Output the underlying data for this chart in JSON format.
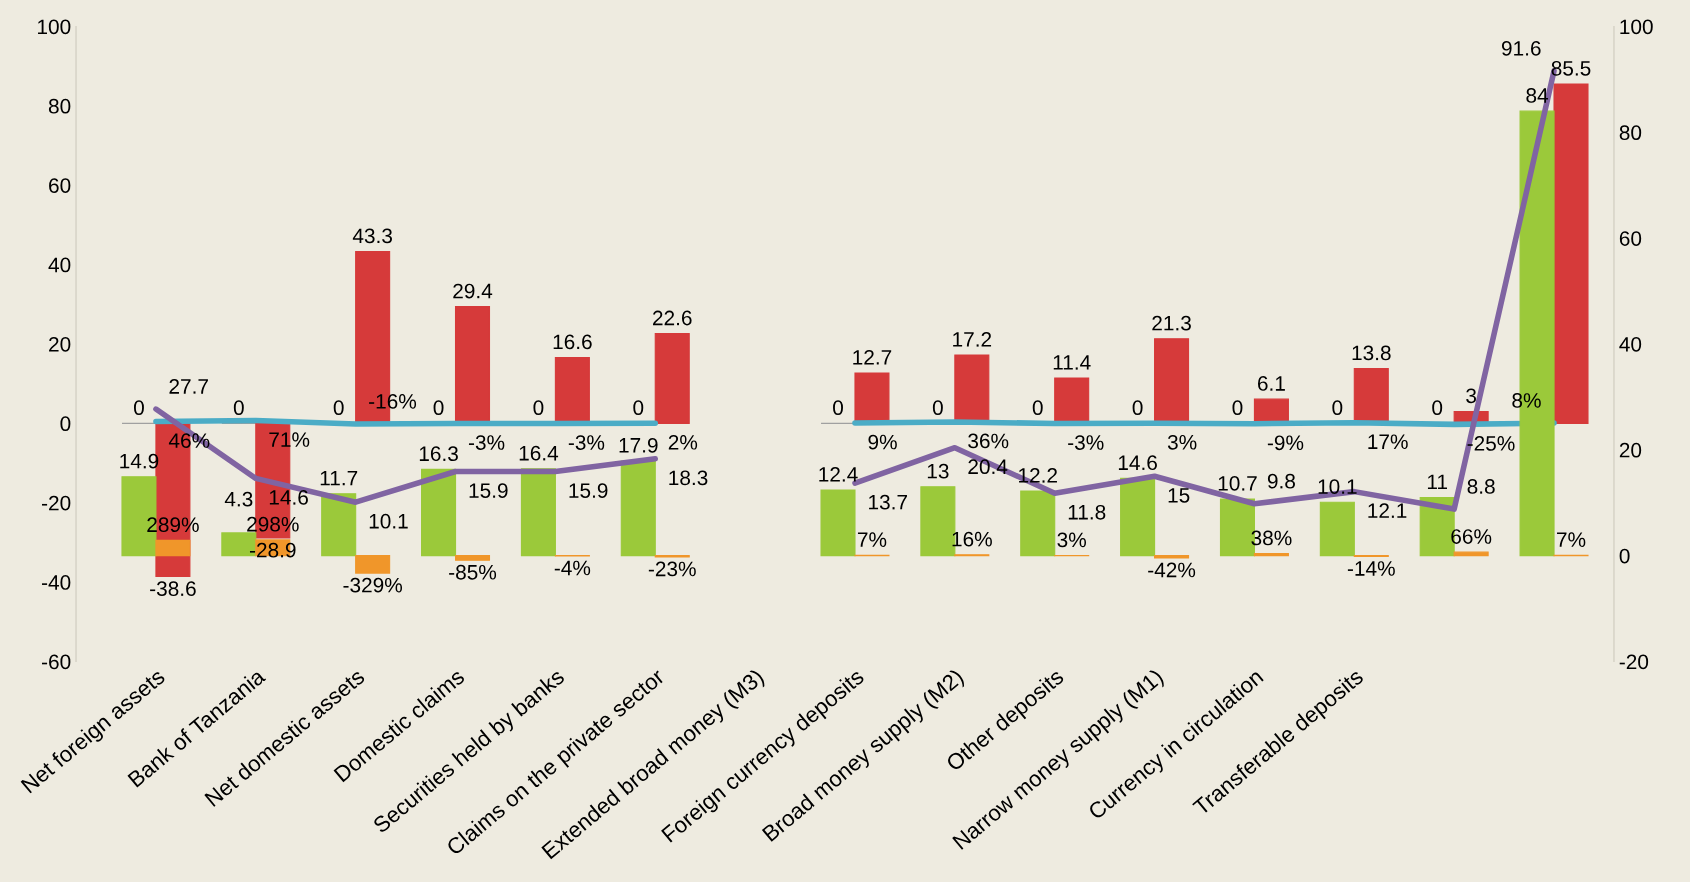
{
  "chart_data": {
    "type": "bar",
    "categories": [
      "Net foreign assets",
      "Bank of Tanzania",
      "Net domestic assets",
      "Domestic claims",
      "Securities held by banks",
      "Claims on the private sector",
      "Extended broad money (M3)",
      "Foreign currency deposits",
      "Broad money supply (M2)",
      "Other deposits",
      "Narrow money supply (M1)",
      "Currency in circulation",
      "Transferable deposits",
      null,
      null
    ],
    "series": [
      {
        "color": "#a0a0a0",
        "values": [
          0,
          0,
          0,
          0,
          0,
          0,
          null,
          0,
          0,
          0,
          0,
          0,
          0,
          0,
          null
        ],
        "value_labels": [
          "0",
          "0",
          "0",
          "0",
          "0",
          "0",
          null,
          "0",
          "0",
          "0",
          "0",
          "0",
          "0",
          "0",
          null
        ]
      },
      {
        "color": "#d63a3a",
        "values": [
          -38.6,
          -28.9,
          43.3,
          29.4,
          16.6,
          22.6,
          null,
          12.7,
          17.2,
          11.4,
          21.3,
          6.1,
          13.8,
          3,
          85.5
        ],
        "value_labels": [
          "-38.6",
          "-28.9",
          "43.3",
          "29.4",
          "16.6",
          "22.6",
          null,
          "12.7",
          "17.2",
          "11.4",
          "21.3",
          "6.1",
          "13.8",
          "3",
          "85.5"
        ]
      },
      {
        "axis": "y2",
        "color": "#9bc93a",
        "values": [
          14.9,
          4.3,
          11.7,
          16.3,
          16.4,
          17.9,
          null,
          12.4,
          13,
          12.2,
          14.6,
          10.7,
          10.1,
          11,
          84
        ],
        "value_labels": [
          "14.9",
          "4.3",
          "11.7",
          "16.3",
          "16.4",
          "17.9",
          null,
          "12.4",
          "13",
          "12.2",
          "14.6",
          "10.7",
          "10.1",
          "11",
          "84"
        ]
      },
      {
        "axis": "y2",
        "color": "#f0962a",
        "values": [
          2.89,
          2.98,
          -3.29,
          -0.85,
          -0.04,
          -0.23,
          null,
          0.07,
          0.16,
          0.03,
          -0.42,
          0.38,
          -0.14,
          0.66,
          0.07
        ],
        "value_labels": [
          "289%",
          "298%",
          "-329%",
          "-85%",
          "-4%",
          "-23%",
          null,
          "7%",
          "16%",
          "3%",
          "-42%",
          "38%",
          "-14%",
          "66%",
          "7%"
        ]
      },
      {
        "type": "line",
        "color": "#4bacc6",
        "values": [
          0.46,
          0.71,
          -0.16,
          -0.03,
          -0.03,
          0.02,
          null,
          0.09,
          0.36,
          -0.03,
          0.03,
          -0.09,
          0.17,
          -0.25,
          0.08
        ],
        "value_labels": [
          "46%",
          "71%",
          "-16%",
          "-3%",
          "-3%",
          "2%",
          null,
          "9%",
          "36%",
          "-3%",
          "3%",
          "-9%",
          "17%",
          "-25%",
          "8%"
        ]
      },
      {
        "type": "line",
        "axis": "y2",
        "color": "#8064a2",
        "values": [
          27.7,
          14.6,
          10.1,
          15.9,
          15.9,
          18.3,
          null,
          13.7,
          20.4,
          11.8,
          15,
          9.8,
          12.1,
          8.8,
          91.6
        ],
        "value_labels": [
          "27.7",
          "14.6",
          "10.1",
          "15.9",
          "15.9",
          "18.3",
          null,
          "13.7",
          "20.4",
          "11.8",
          "15",
          "9.8",
          "12.1",
          "8.8",
          "91.6"
        ]
      }
    ],
    "ylim": [
      -60,
      100
    ],
    "yticks": [
      -60,
      -40,
      -20,
      0,
      20,
      40,
      60,
      80,
      100
    ],
    "y2lim": [
      -20,
      100
    ],
    "y2ticks": [
      -20,
      0,
      20,
      40,
      60,
      80,
      100
    ],
    "grid": false,
    "legend": false,
    "marker": "none",
    "line_style": "solid"
  }
}
